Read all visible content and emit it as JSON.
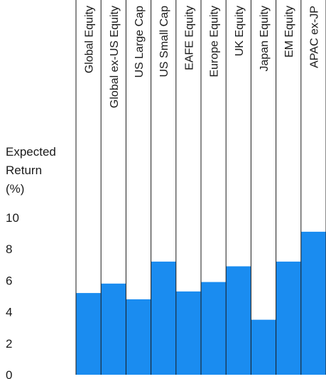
{
  "chart_data": {
    "type": "bar",
    "title": "",
    "xlabel": "",
    "ylabel_lines": [
      "Expected",
      "Return",
      "(%)"
    ],
    "categories": [
      "Global Equity",
      "Global ex-US Equity",
      "US Large Cap",
      "US Small Cap",
      "EAFE Equity",
      "Europe Equity",
      "UK Equity",
      "Japan Equity",
      "EM Equity",
      "APAC ex-JP"
    ],
    "values": [
      5.2,
      5.8,
      4.8,
      7.2,
      5.3,
      5.9,
      6.9,
      3.5,
      7.2,
      9.1
    ],
    "ylim": [
      0,
      10
    ],
    "yticks": [
      "0",
      "2",
      "4",
      "6",
      "8",
      "10"
    ],
    "grid": false,
    "legend": "none",
    "colors": {
      "bar": "#1a8cf0",
      "divider": "#1a1a1a",
      "text": "#1a1a1a"
    }
  }
}
